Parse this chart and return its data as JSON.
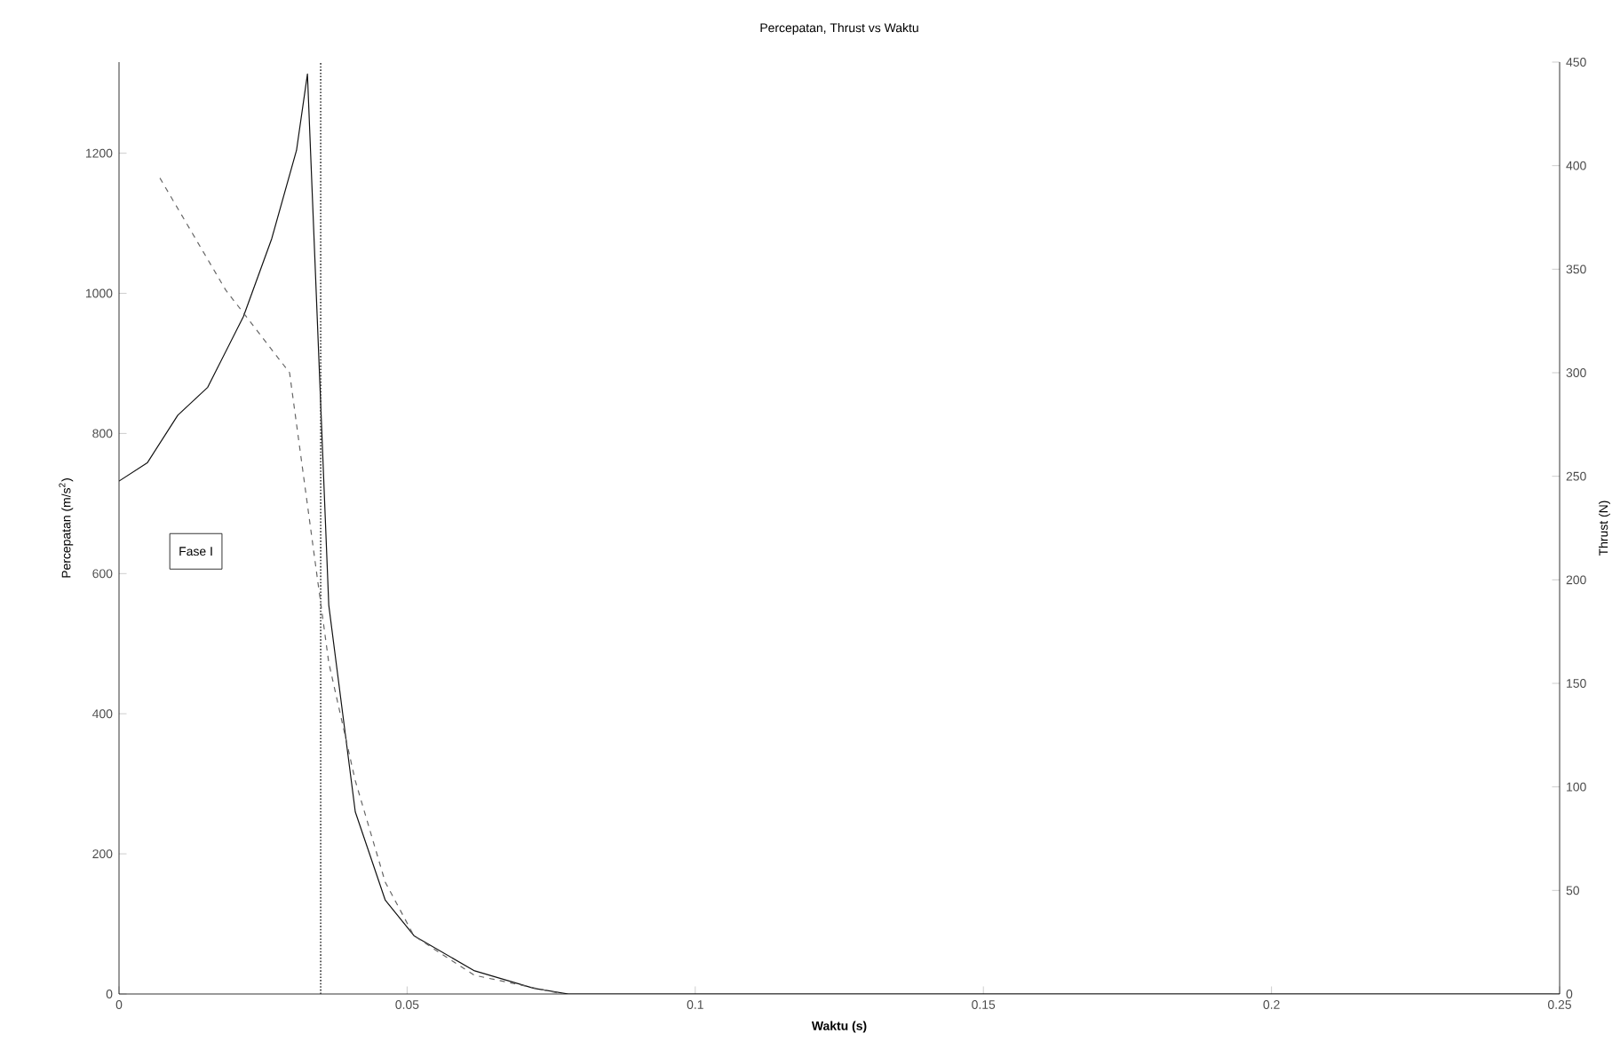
{
  "chart_data": {
    "type": "line",
    "title": "Percepatan, Thrust vs Waktu",
    "xlabel": "Waktu (s)",
    "ylabel": "Percepatan (m/s$^{2}$)",
    "y2label": "Thrust (N)",
    "xlim": [
      0,
      0.25
    ],
    "xticks": [
      0,
      0.05,
      0.1,
      0.15,
      0.2,
      0.25
    ],
    "ylim": [
      0,
      1330
    ],
    "yticks": [
      0,
      200,
      400,
      600,
      800,
      1000,
      1200
    ],
    "y2lim": [
      0,
      450
    ],
    "y2ticks": [
      0,
      50,
      100,
      150,
      200,
      250,
      300,
      350,
      400,
      450
    ],
    "series": [
      {
        "color": "#111111",
        "line_style": "solid",
        "x": [
          0,
          0.0049,
          0.0102,
          0.0154,
          0.0216,
          0.0265,
          0.0308,
          0.0327,
          0.0364,
          0.041,
          0.0462,
          0.0512,
          0.0617,
          0.072,
          0.078,
          0.25
        ],
        "values": [
          732,
          758,
          826,
          866,
          967,
          1078,
          1204,
          1313,
          555,
          260,
          134,
          83,
          33,
          8,
          0,
          0
        ]
      },
      {
        "color": "#666666",
        "line_style": "dashed",
        "axis": "y2",
        "x": [
          0.0071,
          0.0185,
          0.0296,
          0.0364,
          0.041,
          0.0462,
          0.0512,
          0.0617,
          0.072,
          0.077
        ],
        "values": [
          394,
          340,
          300,
          160,
          103,
          54,
          28,
          9,
          3,
          0
        ]
      }
    ],
    "ref_lines": [
      {
        "axis": "x",
        "value": 0.035,
        "color": "#333333",
        "line_style": "dotted"
      }
    ],
    "annotations": [
      "Fase I"
    ]
  }
}
